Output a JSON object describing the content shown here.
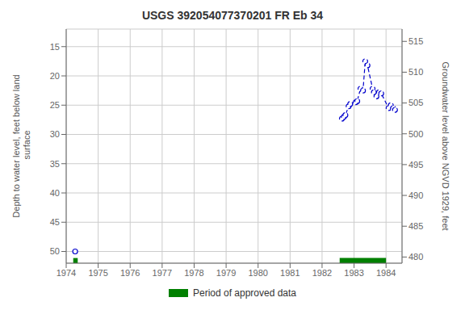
{
  "chart_data": {
    "type": "line",
    "title": "USGS 392054077370201 FR Eb  34",
    "ylabel": "Depth to water level, feet below land\n surface",
    "y2label": "Groundwater level above NGVD 1929, feet",
    "xlim": [
      1974.0,
      1984.5
    ],
    "ylim": [
      52,
      12
    ],
    "y2lim": [
      479.0,
      517.0
    ],
    "xticks": [
      1974,
      1975,
      1976,
      1977,
      1978,
      1979,
      1980,
      1981,
      1982,
      1983,
      1984
    ],
    "yticks": [
      15,
      20,
      25,
      30,
      35,
      40,
      45,
      50
    ],
    "y2ticks": [
      480,
      485,
      490,
      495,
      500,
      505,
      510,
      515
    ],
    "grid": true,
    "legend": "bottom",
    "x": [
      1974.28,
      1982.62,
      1982.68,
      1982.73,
      1982.83,
      1982.88,
      1983.05,
      1983.1,
      1983.2,
      1983.28,
      1983.35,
      1983.42,
      1983.58,
      1983.62,
      1983.7,
      1983.78,
      1983.85,
      1984.08,
      1984.15,
      1984.22,
      1984.28
    ],
    "series": [
      {
        "color": "#0000cc",
        "marker": "circle",
        "line_style": "none",
        "values": [
          50.0,
          null,
          null,
          null,
          null,
          null,
          null,
          null,
          null,
          null,
          null,
          null,
          null,
          null,
          null,
          null,
          null,
          null,
          null,
          null,
          null
        ]
      },
      {
        "color": "#0000cc",
        "marker": "circle",
        "line_style": "dashed",
        "values": [
          null,
          27.3,
          27.0,
          26.7,
          25.2,
          24.8,
          24.5,
          24.3,
          22.2,
          22.5,
          17.5,
          18.2,
          22.2,
          22.8,
          23.5,
          22.8,
          23.0,
          25.5,
          25.0,
          25.5,
          25.8
        ]
      }
    ],
    "approved_periods": {
      "name": "Period of approved data",
      "color": "#008000",
      "ranges": [
        [
          1974.22,
          1974.36
        ],
        [
          1982.55,
          1984.0
        ]
      ]
    }
  }
}
